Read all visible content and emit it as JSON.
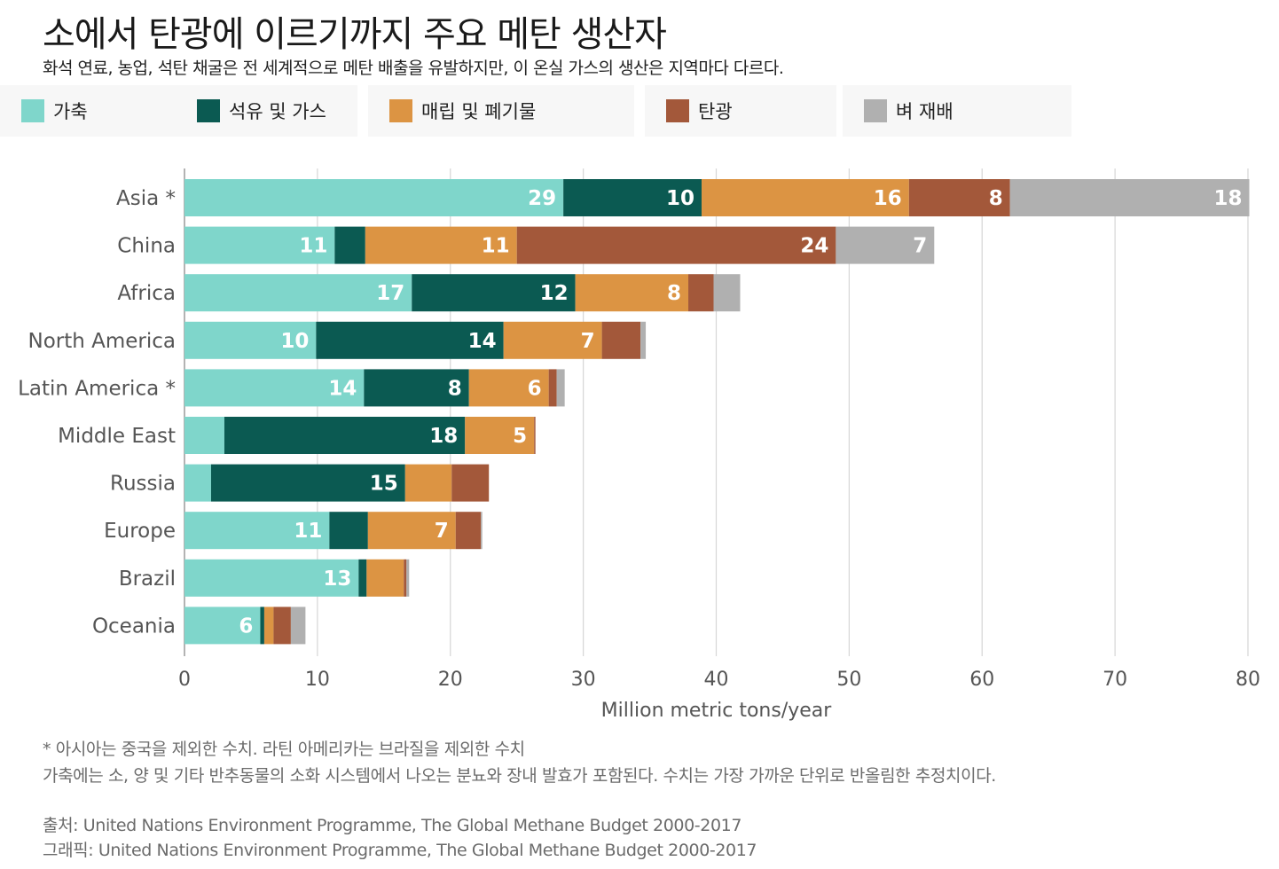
{
  "header": {
    "title": "소에서 탄광에 이르기까지 주요 메탄 생산자",
    "subtitle": "화석 연료, 농업, 석탄 채굴은 전 세계적으로 메탄 배출을 유발하지만, 이 온실 가스의 생산은 지역마다 다르다."
  },
  "legend": [
    {
      "label": "가축",
      "color": "#7fd6cb"
    },
    {
      "label": "석유 및 가스",
      "color": "#0b5a52"
    },
    {
      "label": "매립 및 폐기물",
      "color": "#dc9443"
    },
    {
      "label": "탄광",
      "color": "#a3583a"
    },
    {
      "label": "벼 재배",
      "color": "#b0b0b0"
    }
  ],
  "chart_data": {
    "type": "bar",
    "orientation": "horizontal",
    "stacked": true,
    "categories": [
      "Asia *",
      "China",
      "Africa",
      "North America",
      "Latin America *",
      "Middle East",
      "Russia",
      "Europe",
      "Brazil",
      "Oceania"
    ],
    "series": [
      {
        "name": "가축",
        "color": "#7fd6cb",
        "values": [
          28.5,
          11.3,
          17.1,
          9.9,
          13.5,
          3.0,
          2.0,
          10.9,
          13.1,
          5.7
        ]
      },
      {
        "name": "석유 및 가스",
        "color": "#0b5a52",
        "values": [
          10.4,
          2.3,
          12.3,
          14.1,
          7.9,
          18.1,
          14.6,
          2.9,
          0.6,
          0.3
        ]
      },
      {
        "name": "매립 및 폐기물",
        "color": "#dc9443",
        "values": [
          15.6,
          11.4,
          8.5,
          7.4,
          6.0,
          5.2,
          3.5,
          6.6,
          2.8,
          0.7
        ]
      },
      {
        "name": "탄광",
        "color": "#a3583a",
        "values": [
          7.6,
          24.0,
          1.9,
          2.9,
          0.6,
          0.1,
          2.8,
          1.9,
          0.2,
          1.3
        ]
      },
      {
        "name": "벼 재배",
        "color": "#b0b0b0",
        "values": [
          18.0,
          7.4,
          2.0,
          0.4,
          0.6,
          0.0,
          0.0,
          0.1,
          0.2,
          1.1
        ]
      }
    ],
    "data_labels": [
      [
        "29",
        "10",
        "16",
        "8",
        "18"
      ],
      [
        "11",
        "",
        "11",
        "24",
        "7"
      ],
      [
        "17",
        "12",
        "8",
        "",
        ""
      ],
      [
        "10",
        "14",
        "7",
        "",
        ""
      ],
      [
        "14",
        "8",
        "6",
        "",
        ""
      ],
      [
        "",
        "18",
        "5",
        "",
        ""
      ],
      [
        "",
        "15",
        "",
        "",
        ""
      ],
      [
        "11",
        "",
        "7",
        "",
        ""
      ],
      [
        "13",
        "",
        "",
        "",
        ""
      ],
      [
        "6",
        "",
        "",
        "",
        ""
      ]
    ],
    "xlim": [
      0,
      80
    ],
    "xticks": [
      "0",
      "10",
      "20",
      "30",
      "40",
      "50",
      "60",
      "70",
      "80"
    ],
    "xlabel": "Million metric tons/year",
    "grid": true
  },
  "footer": {
    "note1": "* 아시아는 중국을 제외한 수치. 라틴 아메리카는 브라질을 제외한 수치",
    "note2": "가축에는 소, 양 및 기타 반추동물의 소화 시스템에서 나오는 분뇨와 장내 발효가 포함된다. 수치는 가장 가까운 단위로 반올림한 추정치이다.",
    "source": "출처: United Nations Environment Programme, The Global Methane Budget 2000-2017",
    "graphic": "그래픽: United Nations Environment Programme, The Global Methane Budget 2000-2017"
  }
}
